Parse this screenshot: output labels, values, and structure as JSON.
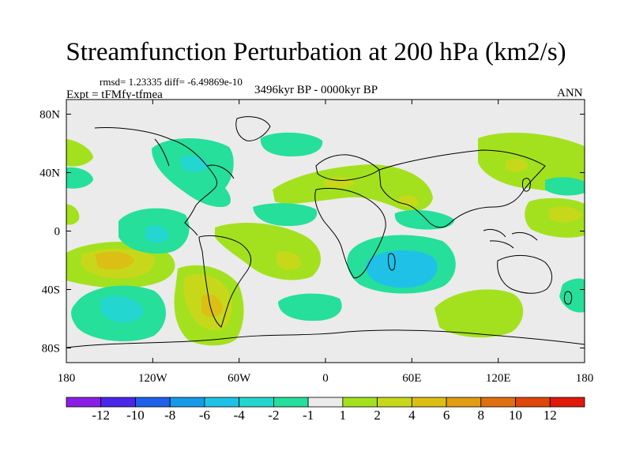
{
  "title": "Streamfunction Perturbation at 200 hPa (km2/s)",
  "stats": "rmsd= 1.23335 diff= -6.49869e-10",
  "experiment": "Expt = tFMfy-tfmea",
  "period": "3496kyr BP - 0000kyr BP",
  "season": "ANN",
  "axes": {
    "x_ticks": [
      "180",
      "120W",
      "60W",
      "0",
      "60E",
      "120E",
      "180"
    ],
    "y_ticks": [
      "80N",
      "40N",
      "0",
      "40S",
      "80S"
    ],
    "lon_range": [
      -180,
      180
    ],
    "lat_range": [
      -90,
      90
    ]
  },
  "colorbar": {
    "labels": [
      "-12",
      "-10",
      "-8",
      "-6",
      "-4",
      "-2",
      "-1",
      "1",
      "2",
      "4",
      "6",
      "8",
      "10",
      "12"
    ],
    "colors": [
      "#8a1ee6",
      "#4a26e8",
      "#1f60ea",
      "#159ae8",
      "#1fc2e6",
      "#23d6cf",
      "#25df9a",
      "#ebebeb",
      "#a3e11f",
      "#c7d81b",
      "#dcbf15",
      "#e19c12",
      "#e0700f",
      "#df460c",
      "#e01a0a"
    ]
  },
  "colors": {
    "background": "#ebebeb",
    "neg1": "#25df9a",
    "neg2": "#23d6cf",
    "neg3": "#1fc2e6",
    "pos1": "#a3e11f",
    "pos2": "#c7d81b",
    "pos3": "#dcbf15",
    "pos4": "#e19c12"
  }
}
